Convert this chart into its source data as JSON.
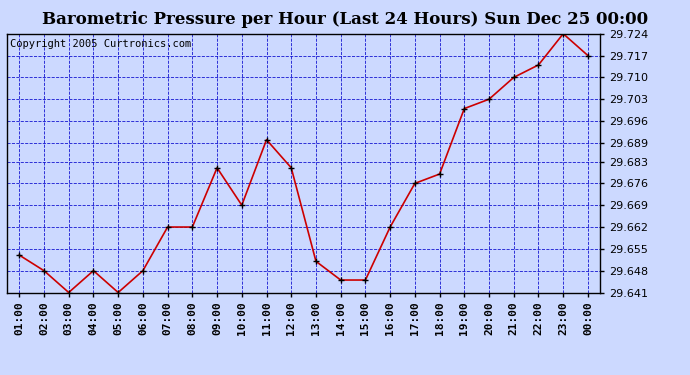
{
  "title": "Barometric Pressure per Hour (Last 24 Hours) Sun Dec 25 00:00",
  "copyright": "Copyright 2005 Curtronics.com",
  "hours": [
    "01:00",
    "02:00",
    "03:00",
    "04:00",
    "05:00",
    "06:00",
    "07:00",
    "08:00",
    "09:00",
    "10:00",
    "11:00",
    "12:00",
    "13:00",
    "14:00",
    "15:00",
    "16:00",
    "17:00",
    "18:00",
    "19:00",
    "20:00",
    "21:00",
    "22:00",
    "23:00",
    "00:00"
  ],
  "values": [
    29.653,
    29.648,
    29.641,
    29.648,
    29.641,
    29.648,
    29.662,
    29.662,
    29.681,
    29.669,
    29.69,
    29.681,
    29.651,
    29.645,
    29.645,
    29.662,
    29.676,
    29.679,
    29.7,
    29.703,
    29.71,
    29.714,
    29.724,
    29.717
  ],
  "ylim_min": 29.641,
  "ylim_max": 29.724,
  "yticks": [
    29.641,
    29.648,
    29.655,
    29.662,
    29.669,
    29.676,
    29.683,
    29.689,
    29.696,
    29.703,
    29.71,
    29.717,
    29.724
  ],
  "line_color": "#cc0000",
  "marker_color": "#000000",
  "bg_color": "#ccd9ff",
  "grid_color": "#0000cc",
  "border_color": "#000000",
  "title_fontsize": 12,
  "copyright_fontsize": 7.5,
  "tick_fontsize": 8,
  "ytick_fontsize": 8
}
